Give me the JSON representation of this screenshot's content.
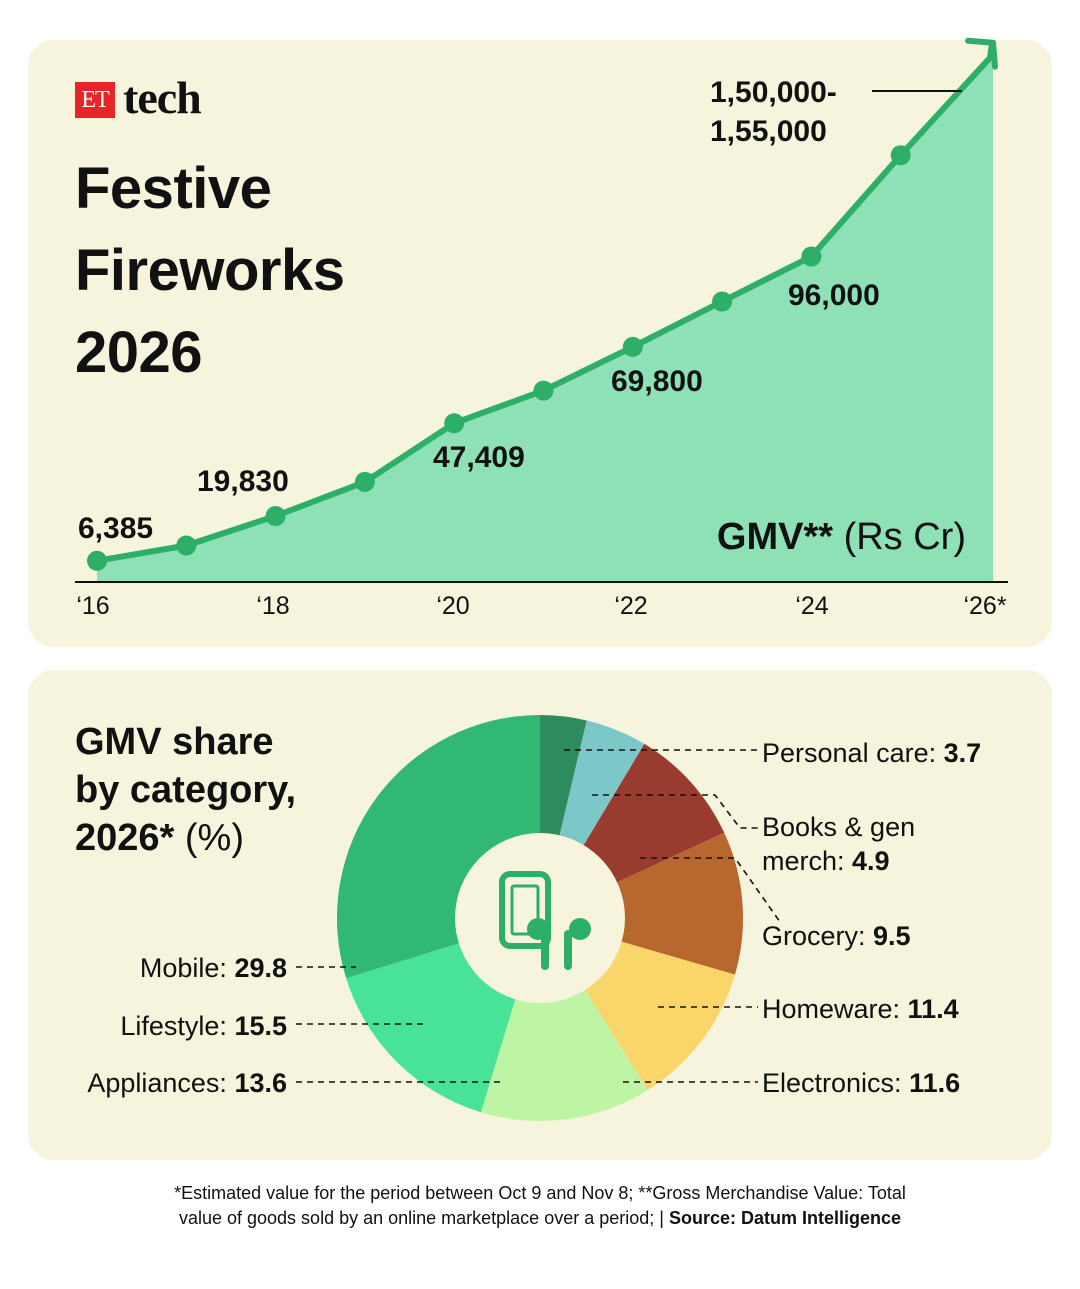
{
  "brand": {
    "logo_box": "ET",
    "logo_text": "tech"
  },
  "title_lines": [
    "Festive",
    "Fireworks",
    "2026"
  ],
  "colors": {
    "panel": "#f6f4dd",
    "area_fill": "#8ee0b6",
    "line": "#2daf68",
    "logo_red": "#e8242b"
  },
  "chart_data": [
    {
      "type": "area",
      "x": [
        "2016",
        "2017",
        "2018",
        "2019",
        "2020",
        "2021",
        "2022",
        "2023",
        "2024",
        "2025",
        "2026"
      ],
      "values": [
        6385,
        11000,
        19830,
        30000,
        47409,
        57000,
        69800,
        83000,
        96000,
        125000,
        152500
      ],
      "tick_labels": [
        "‘16",
        "‘18",
        "‘20",
        "‘22",
        "‘24",
        "‘26*"
      ],
      "data_labels": [
        {
          "index": 0,
          "text": "6,385"
        },
        {
          "index": 2,
          "text": "19,830"
        },
        {
          "index": 4,
          "text": "47,409"
        },
        {
          "index": 6,
          "text": "69,800"
        },
        {
          "index": 8,
          "text": "96,000"
        }
      ],
      "end_label": [
        "1,50,000-",
        "1,55,000"
      ],
      "unit_bold": "GMV**",
      "unit_rest": " (Rs Cr)",
      "grid": false
    },
    {
      "type": "pie",
      "title": "GMV share by category, 2026* (%)",
      "slices": [
        {
          "label": "Personal care",
          "value": 3.7,
          "color": "#2e8a5f"
        },
        {
          "label": "Books & gen merch",
          "value": 4.9,
          "color": "#7cc8c8"
        },
        {
          "label": "Grocery",
          "value": 9.5,
          "color": "#9a3b30"
        },
        {
          "label": "Homeware",
          "value": 11.4,
          "color": "#b8682e"
        },
        {
          "label": "Electronics",
          "value": 11.6,
          "color": "#fad66a"
        },
        {
          "label": "Appliances",
          "value": 13.6,
          "color": "#bdf5a5"
        },
        {
          "label": "Lifestyle",
          "value": 15.5,
          "color": "#48e396"
        },
        {
          "label": "Mobile",
          "value": 29.8,
          "color": "#31b873"
        }
      ],
      "center_icon": "mobile-and-earbuds-icon",
      "center_color": "#f6f4dd",
      "icon_color": "#2daf68"
    }
  ],
  "pie_title": {
    "line1": "GMV share",
    "line2": "by category,",
    "line3_bold": "2026*",
    "line3_rest": " (%)"
  },
  "pie_labels": {
    "personal_care": {
      "name": "Personal care: ",
      "value": "3.7"
    },
    "books": {
      "name1": "Books & gen",
      "name2": "merch: ",
      "value": "4.9"
    },
    "grocery": {
      "name": "Grocery: ",
      "value": "9.5"
    },
    "homeware": {
      "name": "Homeware: ",
      "value": "11.4"
    },
    "electronics": {
      "name": "Electronics: ",
      "value": "11.6"
    },
    "mobile": {
      "name": "Mobile: ",
      "value": "29.8"
    },
    "lifestyle": {
      "name": "Lifestyle: ",
      "value": "15.5"
    },
    "appliances": {
      "name": "Appliances: ",
      "value": "13.6"
    }
  },
  "footnote": {
    "line1": "*Estimated value for the period between Oct 9 and Nov 8; **Gross Merchandise Value: Total",
    "line2": "value of goods sold by an online marketplace over a period;  | ",
    "source": "Source: Datum Intelligence"
  }
}
